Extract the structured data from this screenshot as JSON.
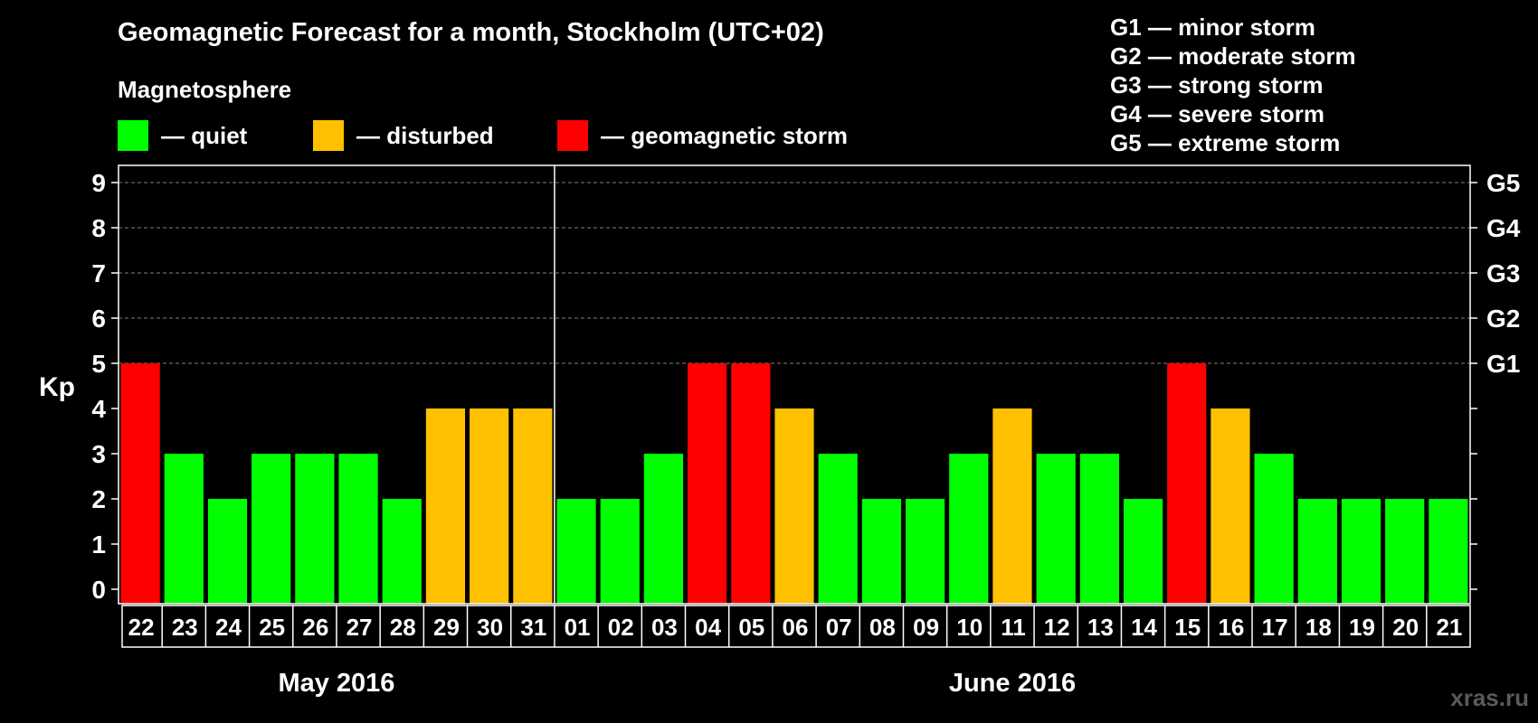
{
  "title": "Geomagnetic Forecast for a month, Stockholm (UTC+02)",
  "subtitle": "Magnetosphere",
  "legend": [
    {
      "label": "— quiet",
      "color": "#00ff00"
    },
    {
      "label": "— disturbed",
      "color": "#ffc000"
    },
    {
      "label": "— geomagnetic storm",
      "color": "#ff0000"
    }
  ],
  "storm_legend": [
    {
      "label": "G1 — minor storm"
    },
    {
      "label": "G2 — moderate storm"
    },
    {
      "label": "G3 — strong storm"
    },
    {
      "label": "G4 — severe storm"
    },
    {
      "label": "G5 — extreme storm"
    }
  ],
  "watermark": "xras.ru",
  "colors": {
    "quiet": "#00ff00",
    "disturbed": "#ffc000",
    "storm": "#ff0000",
    "background": "#000000",
    "axis": "#ffffff",
    "grid": "#808080"
  },
  "chart_data": {
    "type": "bar",
    "ylabel": "Kp",
    "ylim": [
      0,
      9
    ],
    "yticks": [
      0,
      1,
      2,
      3,
      4,
      5,
      6,
      7,
      8,
      9
    ],
    "right_ticks": [
      {
        "y": 5,
        "label": "G1"
      },
      {
        "y": 6,
        "label": "G2"
      },
      {
        "y": 7,
        "label": "G3"
      },
      {
        "y": 8,
        "label": "G4"
      },
      {
        "y": 9,
        "label": "G5"
      }
    ],
    "grid_lines": [
      5,
      6,
      7,
      8,
      9
    ],
    "categories": [
      "22",
      "23",
      "24",
      "25",
      "26",
      "27",
      "28",
      "29",
      "30",
      "31",
      "01",
      "02",
      "03",
      "04",
      "05",
      "06",
      "07",
      "08",
      "09",
      "10",
      "11",
      "12",
      "13",
      "14",
      "15",
      "16",
      "17",
      "18",
      "19",
      "20",
      "21"
    ],
    "values": [
      5,
      3,
      2,
      3,
      3,
      3,
      2,
      4,
      4,
      4,
      2,
      2,
      3,
      5,
      5,
      4,
      3,
      2,
      2,
      3,
      4,
      3,
      3,
      2,
      5,
      4,
      3,
      2,
      2,
      2,
      2
    ],
    "month_groups": [
      {
        "label": "May 2016",
        "start": 0,
        "end": 9
      },
      {
        "label": "June 2016",
        "start": 10,
        "end": 30
      }
    ]
  }
}
